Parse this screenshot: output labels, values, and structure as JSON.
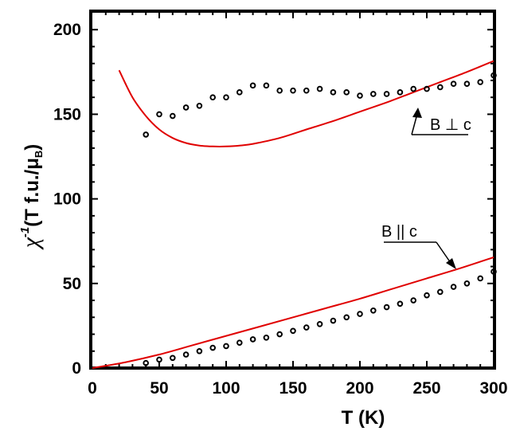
{
  "chart_data": {
    "type": "scatter",
    "xlabel": "T (K)",
    "ylabel_main": "χ",
    "ylabel_exp": "-1",
    "ylabel_unit_a": "(T f.u./μ",
    "ylabel_unit_sub": "B",
    "ylabel_unit_b": ")",
    "xlim": [
      0,
      300
    ],
    "ylim": [
      0,
      210
    ],
    "x_ticks": [
      "0",
      "50",
      "100",
      "150",
      "200",
      "250",
      "300"
    ],
    "y_ticks": [
      "0",
      "50",
      "100",
      "150",
      "200"
    ],
    "grid": false,
    "legend": "none",
    "annotations": [
      {
        "id": "perp",
        "text": "B ⊥ c",
        "series": "B_perp_c"
      },
      {
        "id": "par",
        "text": "B || c",
        "series": "B_par_c"
      }
    ],
    "series": [
      {
        "id": "B_perp_c",
        "kind": "points",
        "color": "#000000",
        "x": [
          40,
          50,
          60,
          70,
          80,
          90,
          100,
          110,
          120,
          130,
          140,
          150,
          160,
          170,
          180,
          190,
          200,
          210,
          220,
          230,
          240,
          250,
          260,
          270,
          280,
          290,
          300
        ],
        "y": [
          138,
          150,
          149,
          154,
          155,
          160,
          160,
          163,
          167,
          167,
          164,
          164,
          164,
          165,
          163,
          163,
          161,
          162,
          162,
          163,
          165,
          165,
          166,
          168,
          168,
          169,
          173
        ]
      },
      {
        "id": "B_par_c",
        "kind": "points",
        "color": "#000000",
        "x": [
          40,
          50,
          60,
          70,
          80,
          90,
          100,
          110,
          120,
          130,
          140,
          150,
          160,
          170,
          180,
          190,
          200,
          210,
          220,
          230,
          240,
          250,
          260,
          270,
          280,
          290,
          300
        ],
        "y": [
          3,
          5,
          6,
          8,
          10,
          12,
          13,
          15,
          17,
          18,
          20,
          22,
          24,
          26,
          28,
          30,
          32,
          34,
          36,
          38,
          40,
          43,
          45,
          48,
          50,
          53,
          57
        ]
      },
      {
        "id": "fit_perp",
        "kind": "line",
        "color": "#e00000",
        "x": [
          20,
          30,
          40,
          50,
          60,
          70,
          80,
          90,
          100,
          110,
          120,
          140,
          160,
          180,
          200,
          220,
          240,
          260,
          280,
          300
        ],
        "y": [
          176,
          160,
          149,
          141,
          136,
          133,
          131.5,
          131,
          131,
          131.5,
          132.5,
          136,
          141,
          146,
          151.5,
          157,
          163,
          169,
          175,
          181.5
        ]
      },
      {
        "id": "fit_par",
        "kind": "line",
        "color": "#e00000",
        "x": [
          0,
          25,
          50,
          75,
          100,
          125,
          150,
          175,
          200,
          225,
          250,
          275,
          300
        ],
        "y": [
          0,
          3.5,
          8,
          13.5,
          19,
          24.5,
          30,
          35.5,
          41,
          47,
          53,
          59,
          65.5
        ]
      }
    ]
  }
}
